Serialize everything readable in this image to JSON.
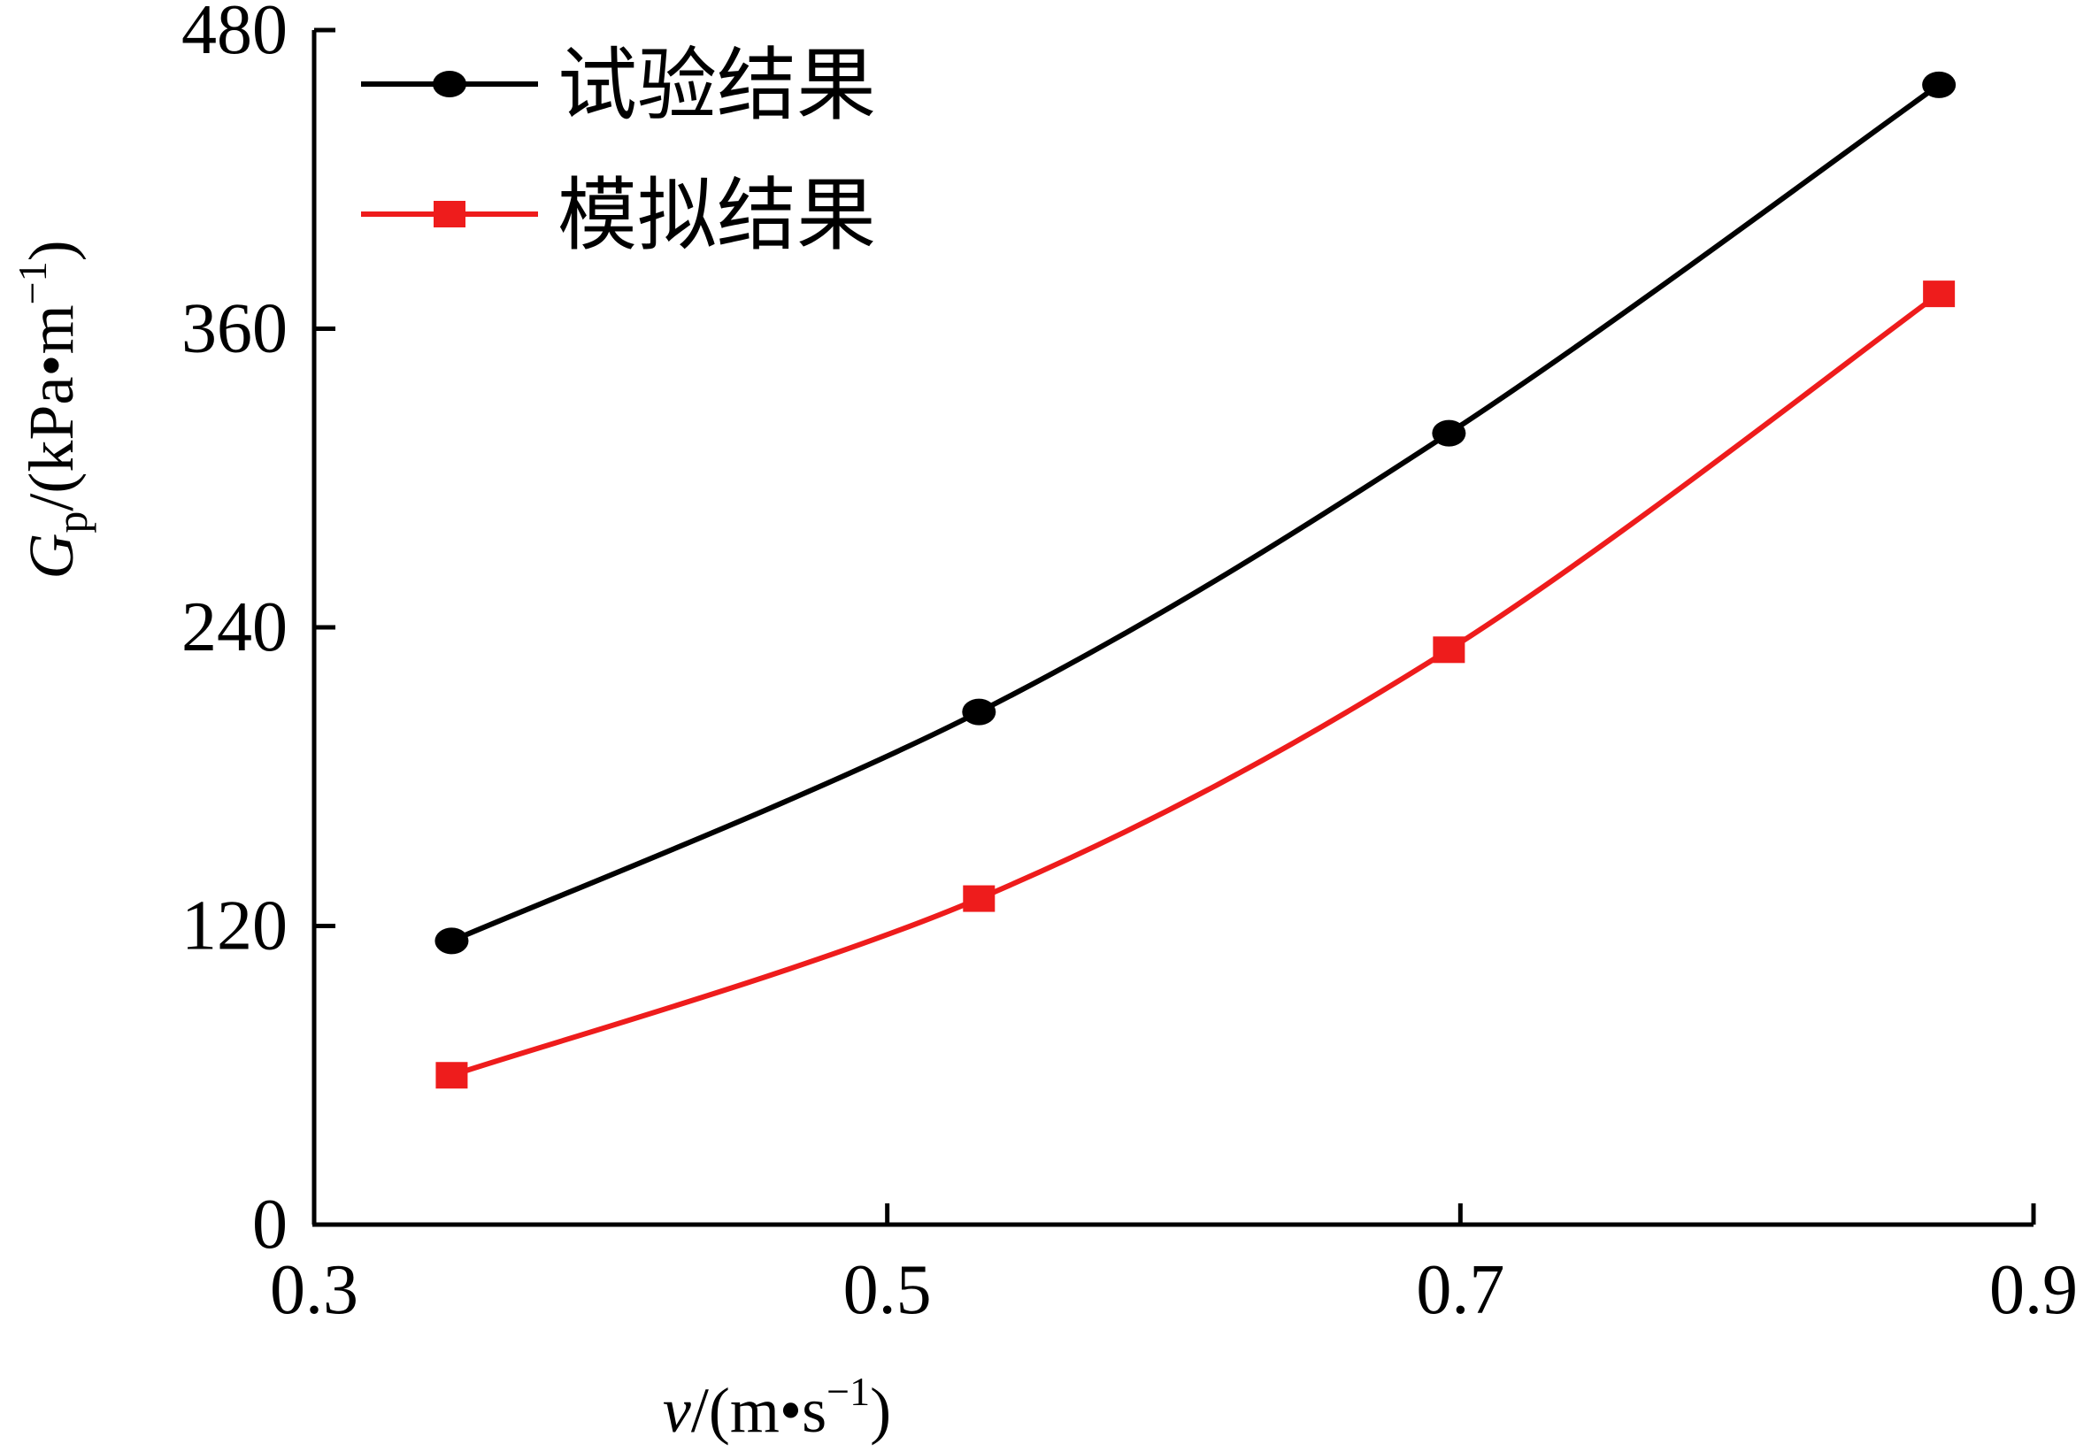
{
  "chart_data": {
    "type": "line",
    "x": [
      0.348,
      0.532,
      0.696,
      0.867
    ],
    "series": [
      {
        "name": "试验结果",
        "color": "#000000",
        "marker": "circle",
        "values": [
          114,
          206,
          318,
          458
        ]
      },
      {
        "name": "模拟结果",
        "color": "#ee1c1c",
        "marker": "square",
        "values": [
          60,
          131,
          231,
          374
        ]
      }
    ],
    "xlim": [
      0.3,
      0.9
    ],
    "ylim": [
      0,
      480
    ],
    "xticks": [
      "0.3",
      "0.5",
      "0.7",
      "0.9"
    ],
    "yticks": [
      "0",
      "120",
      "240",
      "360",
      "480"
    ],
    "xlabel": {
      "var": "v",
      "open": "/(m",
      "dot": "•",
      "unit": "s",
      "exp": "−1",
      "close": ")"
    },
    "ylabel": {
      "var": "G",
      "sub": "p",
      "open": "/(kPa",
      "dot": "•",
      "unit": "m",
      "exp": "−1",
      "close": ")"
    },
    "legend_position": "top-left",
    "grid": false
  }
}
